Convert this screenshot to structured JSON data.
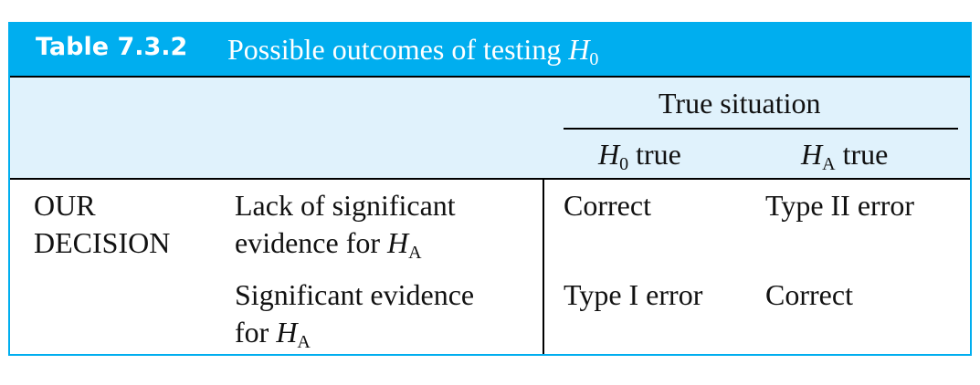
{
  "title": {
    "label": "Table 7.3.2",
    "text": "Possible outcomes of testing",
    "symbol": "H",
    "subscript": "0"
  },
  "header": {
    "group": "True situation",
    "columns": [
      {
        "symbol": "H",
        "subscript": "0",
        "text": "true"
      },
      {
        "symbol": "H",
        "subscript": "A",
        "text": "true"
      }
    ]
  },
  "row_header": {
    "line1": "OUR",
    "line2": "DECISION"
  },
  "rows": [
    {
      "line1": "Lack of significant",
      "line2": "evidence for",
      "symbol": "H",
      "subscript": "A",
      "cells": [
        "Correct",
        "Type II error"
      ]
    },
    {
      "line1": "Significant evidence",
      "line2": "for",
      "symbol": "H",
      "subscript": "A",
      "cells": [
        "Type I error",
        "Correct"
      ]
    }
  ],
  "colors": {
    "title_bg": "#00aeef",
    "header_bg": "#e0f2fc"
  }
}
